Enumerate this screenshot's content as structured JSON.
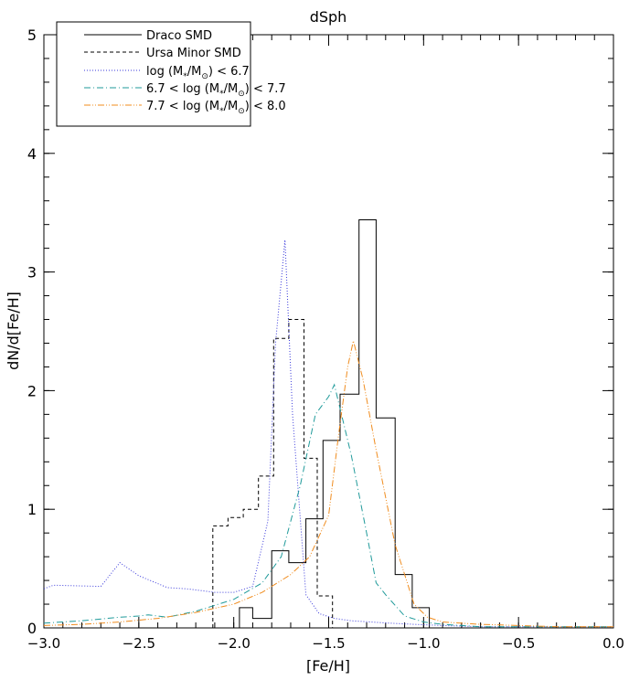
{
  "chart_data": {
    "type": "line",
    "title": "dSph",
    "xlabel": "[Fe/H]",
    "ylabel": "dN/d[Fe/H]",
    "xlim": [
      -3.0,
      0.0
    ],
    "ylim": [
      0,
      5
    ],
    "xticks": [
      "−3.0",
      "−2.5",
      "−2.0",
      "−1.5",
      "−1.0",
      "−0.5",
      "0.0"
    ],
    "xtick_values": [
      -3.0,
      -2.5,
      -2.0,
      -1.5,
      -1.0,
      -0.5,
      0.0
    ],
    "yticks": [
      "0",
      "1",
      "2",
      "3",
      "4",
      "5"
    ],
    "ytick_values": [
      0,
      1,
      2,
      3,
      4,
      5
    ],
    "grid": false,
    "legend_position": "top-left",
    "series": [
      {
        "name": "Draco SMD",
        "kind": "step",
        "color": "#000000",
        "dash": "solid",
        "bins": [
          {
            "x0": -1.97,
            "x1": -1.9,
            "y": 0.17
          },
          {
            "x0": -1.9,
            "x1": -1.8,
            "y": 0.08
          },
          {
            "x0": -1.8,
            "x1": -1.71,
            "y": 0.65
          },
          {
            "x0": -1.71,
            "x1": -1.62,
            "y": 0.55
          },
          {
            "x0": -1.62,
            "x1": -1.53,
            "y": 0.92
          },
          {
            "x0": -1.53,
            "x1": -1.44,
            "y": 1.58
          },
          {
            "x0": -1.44,
            "x1": -1.34,
            "y": 1.97
          },
          {
            "x0": -1.34,
            "x1": -1.25,
            "y": 3.44
          },
          {
            "x0": -1.25,
            "x1": -1.15,
            "y": 1.77
          },
          {
            "x0": -1.15,
            "x1": -1.06,
            "y": 0.45
          },
          {
            "x0": -1.06,
            "x1": -0.97,
            "y": 0.17
          }
        ]
      },
      {
        "name": "Ursa Minor SMD",
        "kind": "step",
        "color": "#000000",
        "dash": "dashed",
        "bins": [
          {
            "x0": -2.11,
            "x1": -2.03,
            "y": 0.86
          },
          {
            "x0": -2.03,
            "x1": -1.95,
            "y": 0.93
          },
          {
            "x0": -1.95,
            "x1": -1.87,
            "y": 1.0
          },
          {
            "x0": -1.87,
            "x1": -1.79,
            "y": 1.28
          },
          {
            "x0": -1.79,
            "x1": -1.71,
            "y": 2.44
          },
          {
            "x0": -1.71,
            "x1": -1.63,
            "y": 2.6
          },
          {
            "x0": -1.63,
            "x1": -1.56,
            "y": 1.43
          },
          {
            "x0": -1.56,
            "x1": -1.48,
            "y": 0.27
          }
        ]
      },
      {
        "name": "log (M*/M⊙) < 6.7",
        "kind": "line",
        "color": "#3a3adb",
        "dash": "dotted",
        "x": [
          -3.0,
          -2.95,
          -2.7,
          -2.6,
          -2.5,
          -2.35,
          -2.25,
          -2.1,
          -2.0,
          -1.9,
          -1.82,
          -1.78,
          -1.73,
          -1.69,
          -1.62,
          -1.55,
          -1.47,
          -1.38,
          -1.28,
          -1.18,
          -1.05,
          -0.9,
          -0.7,
          -0.5,
          -0.3,
          0.0
        ],
        "y": [
          0.33,
          0.36,
          0.35,
          0.55,
          0.44,
          0.34,
          0.33,
          0.3,
          0.3,
          0.35,
          0.9,
          2.4,
          3.27,
          1.8,
          0.28,
          0.12,
          0.08,
          0.06,
          0.05,
          0.04,
          0.03,
          0.02,
          0.01,
          0.01,
          0.01,
          0.01
        ]
      },
      {
        "name": "6.7 < log (M*/M⊙) < 7.7",
        "kind": "line",
        "color": "#1f9a9a",
        "dash": "dashdot",
        "x": [
          -3.0,
          -2.8,
          -2.6,
          -2.5,
          -2.45,
          -2.35,
          -2.2,
          -2.0,
          -1.85,
          -1.75,
          -1.65,
          -1.57,
          -1.5,
          -1.47,
          -1.38,
          -1.3,
          -1.25,
          -1.2,
          -1.1,
          -1.0,
          -0.9,
          -0.7,
          -0.5,
          -0.3,
          0.0
        ],
        "y": [
          0.04,
          0.06,
          0.09,
          0.1,
          0.11,
          0.09,
          0.14,
          0.24,
          0.38,
          0.6,
          1.2,
          1.8,
          1.95,
          2.05,
          1.45,
          0.8,
          0.38,
          0.28,
          0.1,
          0.05,
          0.03,
          0.01,
          0.01,
          0.01,
          0.01
        ]
      },
      {
        "name": "7.7 < log (M*/M⊙) < 8.0",
        "kind": "line",
        "color": "#f08c1e",
        "dash": "dashdotdot",
        "x": [
          -3.0,
          -2.8,
          -2.6,
          -2.4,
          -2.2,
          -2.0,
          -1.85,
          -1.7,
          -1.6,
          -1.5,
          -1.45,
          -1.4,
          -1.37,
          -1.32,
          -1.25,
          -1.2,
          -1.15,
          -1.1,
          -1.05,
          -0.98,
          -0.9,
          -0.7,
          -0.5,
          -0.3,
          -0.1,
          0.0
        ],
        "y": [
          0.02,
          0.03,
          0.05,
          0.08,
          0.13,
          0.2,
          0.3,
          0.45,
          0.6,
          0.95,
          1.6,
          2.2,
          2.42,
          2.1,
          1.5,
          1.1,
          0.7,
          0.45,
          0.2,
          0.09,
          0.05,
          0.03,
          0.02,
          0.01,
          0.01,
          0.01
        ]
      }
    ]
  },
  "legend": {
    "entries": [
      {
        "text": "Draco SMD"
      },
      {
        "text": "Ursa Minor SMD"
      },
      {
        "pre": "log (M",
        "sub": "*",
        "mid": "/M",
        "sub2": "⊙",
        "post": ") < 6.7"
      },
      {
        "pre": "6.7 < log (M",
        "sub": "*",
        "mid": "/M",
        "sub2": "⊙",
        "post": ") < 7.7"
      },
      {
        "pre": "7.7 < log (M",
        "sub": "*",
        "mid": "/M",
        "sub2": "⊙",
        "post": ") < 8.0"
      }
    ]
  }
}
